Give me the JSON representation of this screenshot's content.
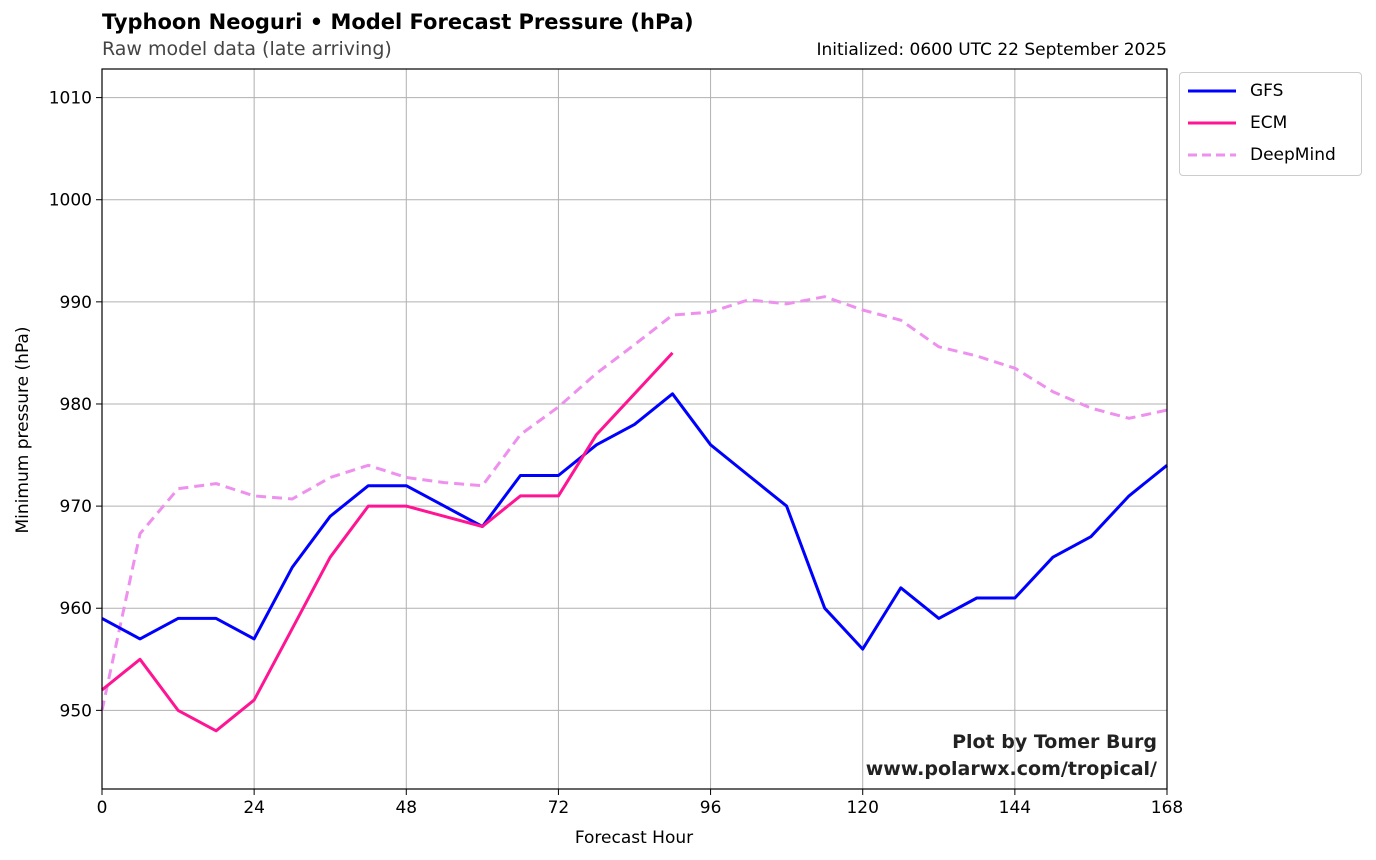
{
  "chart_data": {
    "type": "line",
    "title": "Typhoon Neoguri • Model Forecast Pressure (hPa)",
    "subtitle": "Raw model data (late arriving)",
    "initialized": "Initialized: 0600 UTC 22 September 2025",
    "xlabel": "Forecast Hour",
    "ylabel": "Minimum pressure (hPa)",
    "xlim": [
      0,
      168
    ],
    "ylim": [
      942.3,
      1012.8
    ],
    "xticks": [
      "0",
      "24",
      "48",
      "72",
      "96",
      "120",
      "144",
      "168"
    ],
    "yticks": [
      "950",
      "960",
      "970",
      "980",
      "990",
      "1000",
      "1010"
    ],
    "grid": true,
    "legend_position": "outside top-right",
    "series": [
      {
        "name": "GFS",
        "color": "#0000ff",
        "style": "solid",
        "x": [
          0,
          6,
          12,
          18,
          24,
          30,
          36,
          42,
          48,
          54,
          60,
          66,
          72,
          78,
          84,
          90,
          96,
          102,
          108,
          114,
          120,
          126,
          132,
          138,
          144,
          150,
          156,
          162,
          168
        ],
        "y": [
          959,
          957,
          959,
          959,
          957,
          964,
          969,
          972,
          972,
          970,
          968,
          973,
          973,
          976,
          978,
          981,
          976,
          973,
          970,
          960,
          956,
          962,
          959,
          961,
          961,
          965,
          967,
          971,
          974
        ]
      },
      {
        "name": "ECM",
        "color": "#ff1493",
        "style": "solid",
        "x": [
          0,
          6,
          12,
          18,
          24,
          30,
          36,
          42,
          48,
          54,
          60,
          66,
          72,
          78,
          84,
          90
        ],
        "y": [
          952,
          955,
          950,
          948,
          951,
          958,
          965,
          970,
          970,
          969,
          968,
          971,
          971,
          977,
          981,
          985
        ]
      },
      {
        "name": "DeepMind",
        "color": "#ee90ee",
        "style": "dashed",
        "x": [
          0,
          6,
          12,
          18,
          24,
          30,
          36,
          42,
          48,
          54,
          60,
          66,
          72,
          78,
          84,
          90,
          96,
          102,
          108,
          114,
          120,
          126,
          132,
          138,
          144,
          150,
          156,
          162,
          168
        ],
        "y": [
          950,
          967.3,
          971.7,
          972.2,
          971,
          970.7,
          972.8,
          974,
          972.8,
          972.3,
          972,
          977,
          979.7,
          983,
          985.8,
          988.7,
          989,
          990.2,
          989.8,
          990.5,
          989.2,
          988.2,
          985.6,
          984.7,
          983.5,
          981.2,
          979.6,
          978.6,
          979.4
        ]
      }
    ],
    "credit_line1": "Plot by Tomer Burg",
    "credit_line2": "www.polarwx.com/tropical/"
  }
}
